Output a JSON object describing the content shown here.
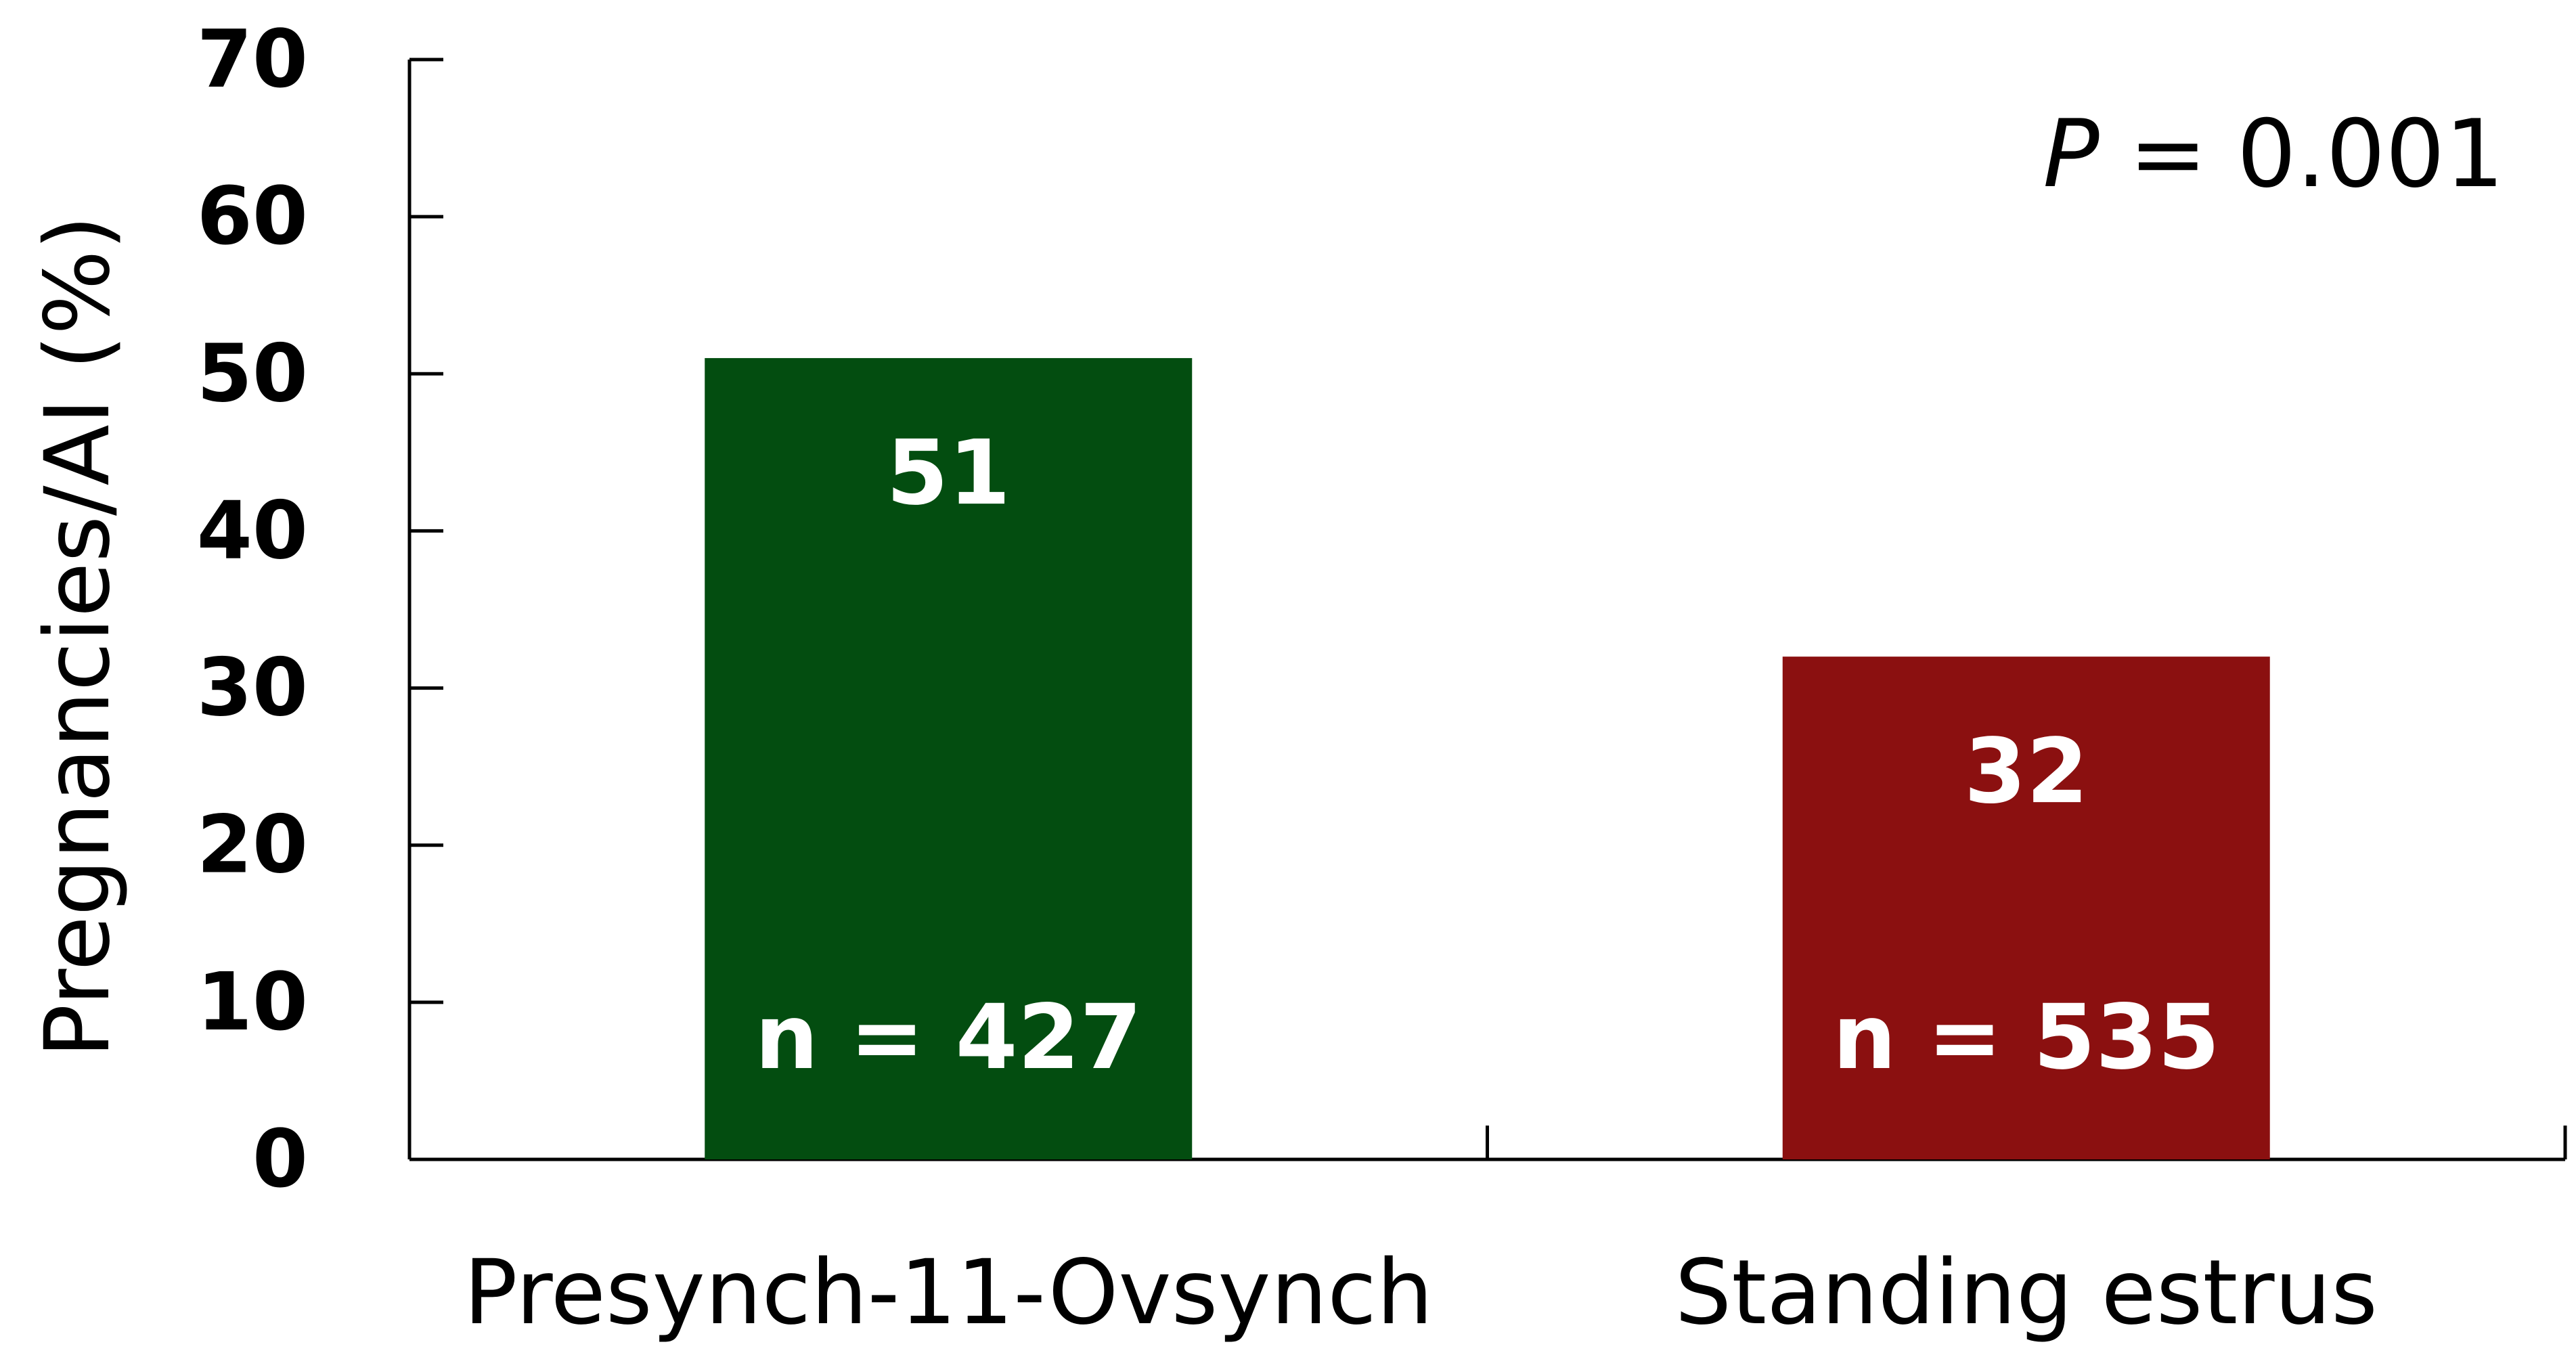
{
  "chart_data": {
    "type": "bar",
    "categories": [
      "Presynch-11-Ovsynch",
      "Standing estrus"
    ],
    "values": [
      51,
      32
    ],
    "bar_labels": [
      "51",
      "32"
    ],
    "sample_sizes": [
      "n = 427",
      "n = 535"
    ],
    "colors": [
      "#034D10",
      "#8B1010"
    ],
    "ylabel": "Pregnancies/AI (%)",
    "xlabel": "",
    "ylim": [
      0,
      70
    ],
    "yticks": [
      0,
      10,
      20,
      30,
      40,
      50,
      60,
      70
    ],
    "annotation": {
      "italic": "P",
      "rest": " = 0.001"
    },
    "grid": false,
    "legend": "none"
  }
}
